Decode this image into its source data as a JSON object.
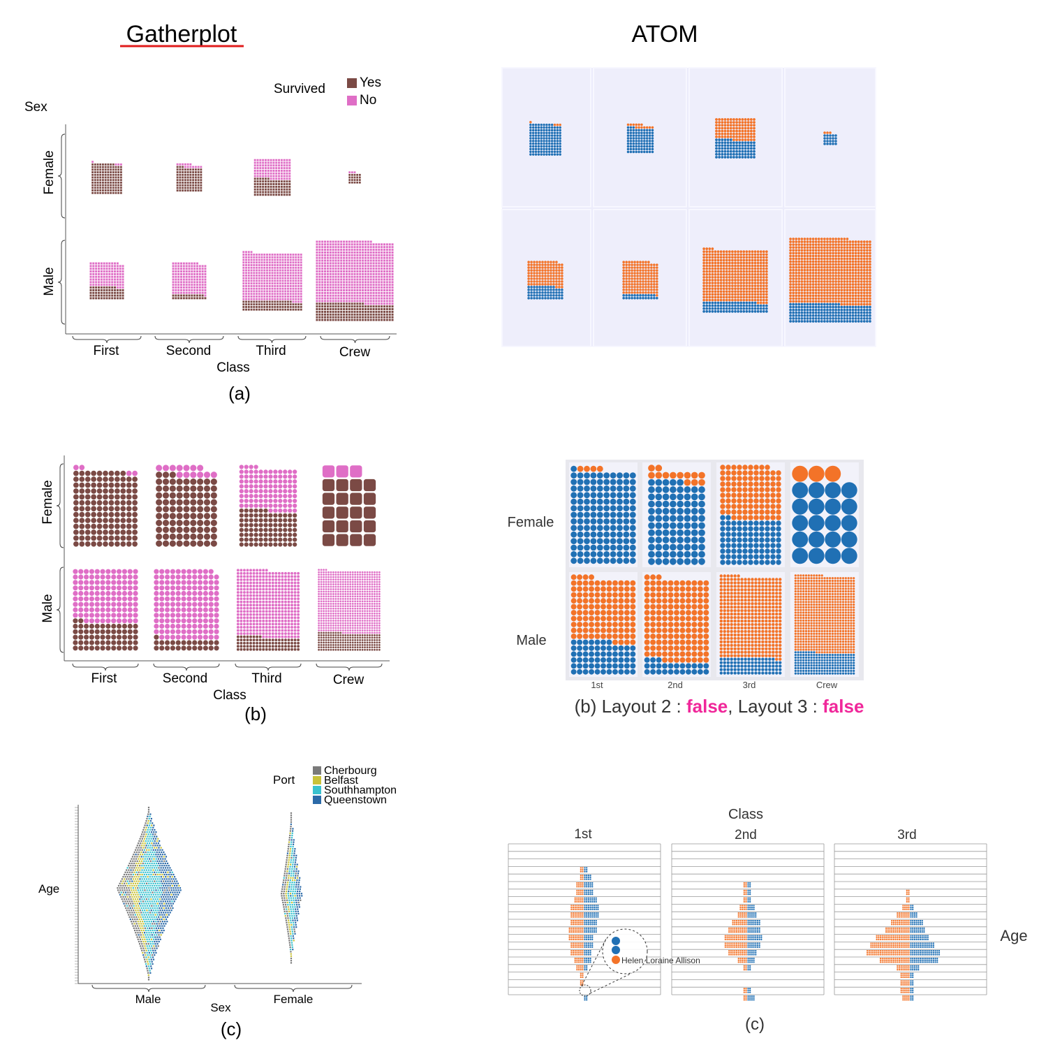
{
  "headings": {
    "left": "Gatherplot",
    "right": "ATOM"
  },
  "colors": {
    "yes_brown": "#7b4a45",
    "no_pink": "#df6ec6",
    "atom_blue": "#2070b4",
    "atom_orange": "#f37328",
    "atom_panel_bg": "#ececfb",
    "atom_cell_bg": "#f2f2fa",
    "false_pink": "#f0279a",
    "heading_underline": "#e01c1c",
    "port_cherbourg": "#7a7a7a",
    "port_belfast": "#c9c23a",
    "port_southampton": "#39c2cf",
    "port_queenstown": "#2b6aa8"
  },
  "panel_a": {
    "legend_title": "Survived",
    "legend_items": [
      "Yes",
      "No"
    ],
    "y_title": "Sex",
    "y_labels": [
      "Female",
      "Male"
    ],
    "x_labels": [
      "First",
      "Second",
      "Third",
      "Crew"
    ],
    "x_title": "Class",
    "caption": "(a)"
  },
  "panel_b": {
    "y_labels": [
      "Female",
      "Male"
    ],
    "x_labels": [
      "First",
      "Second",
      "Third",
      "Crew"
    ],
    "x_title": "Class",
    "caption": "(b)"
  },
  "panel_c": {
    "legend_title": "Port",
    "legend_items": [
      "Cherbourg",
      "Belfast",
      "Southhampton",
      "Queenstown"
    ],
    "y_title": "Age",
    "x_labels": [
      "Male",
      "Female"
    ],
    "x_title": "Sex",
    "caption": "(c)"
  },
  "atom_b": {
    "row_labels": [
      "Female",
      "Male"
    ],
    "col_labels": [
      "1st",
      "2nd",
      "3rd",
      "Crew"
    ],
    "caption_prefix": "(b) Layout 2 : ",
    "caption_false1": "false",
    "caption_mid": ", Layout 3 : ",
    "caption_false2": "false"
  },
  "atom_c": {
    "title": "Class",
    "col_labels": [
      "1st",
      "2nd",
      "3rd"
    ],
    "y_title": "Age",
    "callout": "Helen Loraine Allison",
    "caption": "(c)"
  },
  "chart_data": [
    {
      "type": "unit",
      "id": "gatherplot-a",
      "rows": [
        "Female",
        "Male"
      ],
      "columns": [
        "First",
        "Second",
        "Third",
        "Crew"
      ],
      "legend": [
        "Yes",
        "No"
      ],
      "counts": {
        "Female": {
          "First": {
            "Yes": 141,
            "No": 4
          },
          "Second": {
            "Yes": 93,
            "No": 13
          },
          "Third": {
            "Yes": 90,
            "No": 106
          },
          "Crew": {
            "Yes": 20,
            "No": 3
          }
        },
        "Male": {
          "First": {
            "Yes": 62,
            "No": 118
          },
          "Second": {
            "Yes": 25,
            "No": 154
          },
          "Third": {
            "Yes": 88,
            "No": 422
          },
          "Crew": {
            "Yes": 192,
            "No": 670
          }
        }
      }
    },
    {
      "type": "unit",
      "id": "gatherplot-b",
      "rows": [
        "Female",
        "Male"
      ],
      "columns": [
        "First",
        "Second",
        "Third",
        "Crew"
      ],
      "legend": [
        "Yes",
        "No"
      ],
      "note": "same counts as gatherplot-a, cells maximized"
    },
    {
      "type": "unit",
      "id": "atom-a",
      "rows": [
        "Female",
        "Male"
      ],
      "columns": [
        "1st",
        "2nd",
        "3rd",
        "Crew"
      ],
      "note": "same counts as gatherplot-a; blue = survived, orange = died"
    },
    {
      "type": "unit",
      "id": "atom-b",
      "rows": [
        "Female",
        "Male"
      ],
      "columns": [
        "1st",
        "2nd",
        "3rd",
        "Crew"
      ],
      "note": "same counts, cells maximized; blue = survived, orange = died"
    },
    {
      "type": "unit",
      "id": "gatherplot-c",
      "x": [
        "Male",
        "Female"
      ],
      "y_title": "Age",
      "legend": [
        "Cherbourg",
        "Belfast",
        "Southhampton",
        "Queenstown"
      ]
    },
    {
      "type": "unit",
      "id": "atom-c",
      "columns": [
        "1st",
        "2nd",
        "3rd"
      ],
      "y_title": "Age"
    }
  ]
}
